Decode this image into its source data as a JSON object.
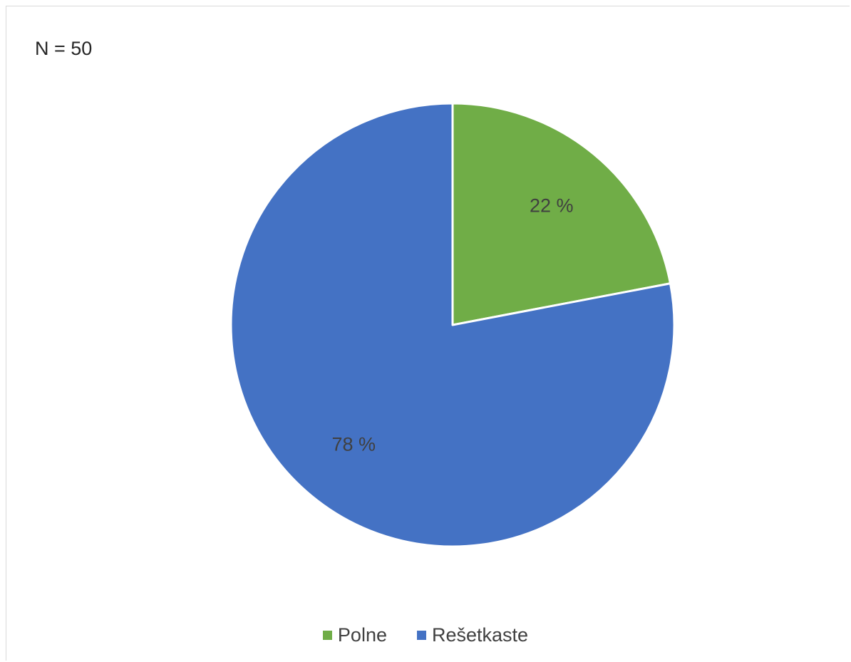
{
  "chart_data": {
    "type": "pie",
    "annotation": "N = 50",
    "categories": [
      "Polne",
      "Rešetkaste"
    ],
    "values": [
      22,
      78
    ],
    "data_labels": [
      "22 %",
      "78 %"
    ],
    "colors": [
      "#70ad47",
      "#4472c4"
    ],
    "legend_position": "bottom",
    "start_angle": "12 o'clock, clockwise"
  }
}
